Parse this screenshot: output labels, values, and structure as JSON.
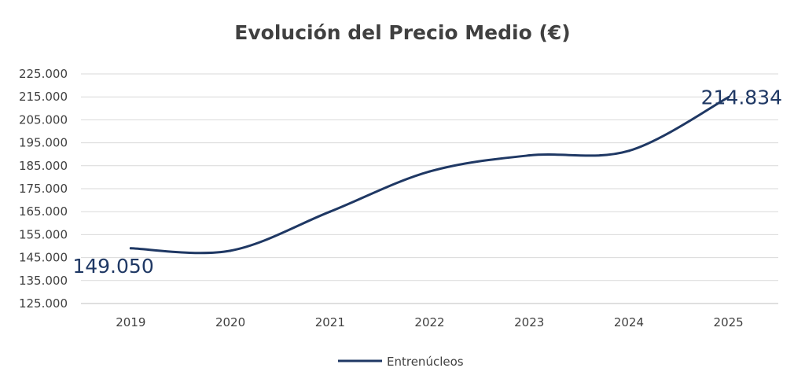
{
  "chart_data": {
    "type": "line",
    "title": "Evolución del Precio Medio (€)",
    "xlabel": "",
    "ylabel": "",
    "categories": [
      "2019",
      "2020",
      "2021",
      "2022",
      "2023",
      "2024",
      "2025"
    ],
    "series": [
      {
        "name": "Entrenúcleos",
        "values": [
          149050,
          148000,
          165000,
          182500,
          189500,
          191500,
          214834
        ],
        "color": "#1f3864"
      }
    ],
    "ylim": [
      125000,
      225000
    ],
    "yticks": [
      "125.000",
      "135.000",
      "145.000",
      "155.000",
      "165.000",
      "175.000",
      "185.000",
      "195.000",
      "205.000",
      "215.000",
      "225.000"
    ],
    "data_labels": [
      {
        "index": 0,
        "text": "149.050"
      },
      {
        "index": 6,
        "text": "214.834"
      }
    ],
    "grid": true,
    "legend_position": "bottom",
    "line_style": "smooth"
  }
}
